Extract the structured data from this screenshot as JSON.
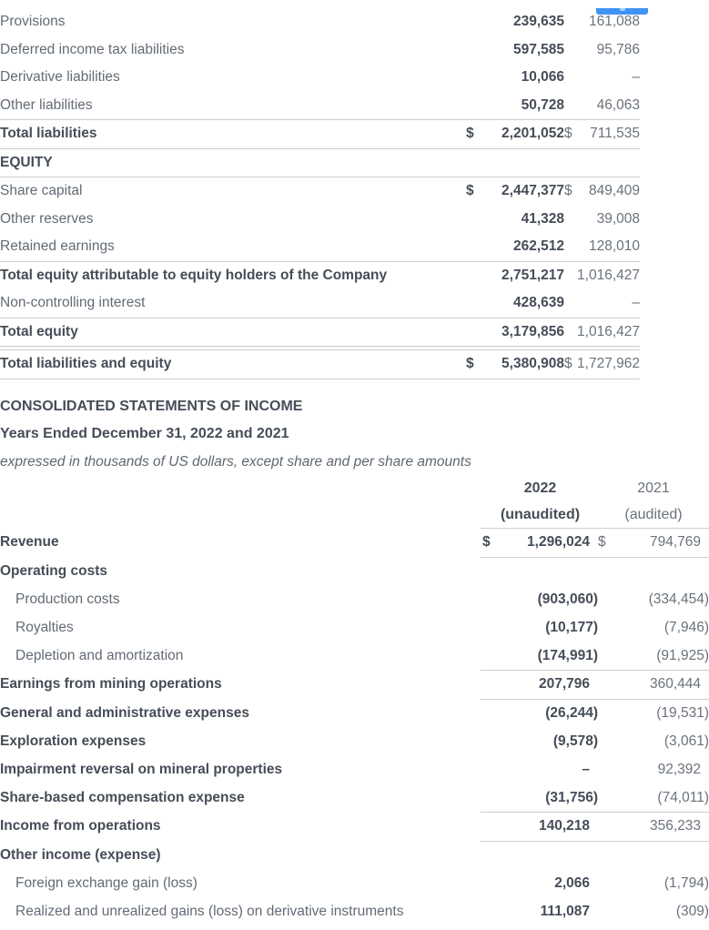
{
  "badge": {
    "color": "#3E93F4"
  },
  "colors": {
    "bold_text": "#454D58",
    "regular_text": "#636B75",
    "secondary_number": "#6A727B",
    "rule": "#CBCFD3",
    "accent_blue": "#3E93F4"
  },
  "balance_sheet": {
    "rows": [
      {
        "label": "Provisions",
        "v2022": "239,635",
        "v2021": "161,088"
      },
      {
        "label": "Deferred income tax liabilities",
        "v2022": "597,585",
        "v2021": "95,786"
      },
      {
        "label": "Derivative liabilities",
        "v2022": "10,066",
        "v2021": "–"
      },
      {
        "label": "Other liabilities",
        "v2022": "50,728",
        "v2021": "46,063",
        "rule_below": "single"
      },
      {
        "label": "Total liabilities",
        "bold": true,
        "d2022": "$",
        "v2022": "2,201,052",
        "d2021": "$",
        "v2021": "711,535",
        "rule_below": "single"
      },
      {
        "label": "EQUITY",
        "bold": true,
        "rule_below": "single"
      },
      {
        "label": "Share capital",
        "d2022": "$",
        "v2022": "2,447,377",
        "d2021": "$",
        "v2021": "849,409"
      },
      {
        "label": "Other reserves",
        "v2022": "41,328",
        "v2021": "39,008"
      },
      {
        "label": "Retained earnings",
        "v2022": "262,512",
        "v2021": "128,010",
        "rule_below": "single"
      },
      {
        "label": "Total equity attributable to equity holders of the Company",
        "bold": true,
        "v2022": "2,751,217",
        "v2021": "1,016,427"
      },
      {
        "label": "Non-controlling interest",
        "v2022": "428,639",
        "v2021": "–",
        "rule_below": "single"
      },
      {
        "label": "Total equity",
        "bold": true,
        "v2022": "3,179,856",
        "v2021": "1,016,427",
        "rule_below": "double"
      },
      {
        "label": "Total liabilities and equity",
        "bold": true,
        "d2022": "$",
        "v2022": "5,380,908",
        "d2021": "$",
        "v2021": "1,727,962",
        "rule_below": "single"
      }
    ]
  },
  "income_statement": {
    "title": "CONSOLIDATED STATEMENTS OF INCOME",
    "subtitle": "Years Ended December 31, 2022 and 2021",
    "note": "expressed in thousands of US dollars, except share and per share amounts",
    "col_headers": {
      "y2022": "2022",
      "y2022_sub": "(unaudited)",
      "y2021": "2021",
      "y2021_sub": "(audited)"
    },
    "rows": [
      {
        "label": "Revenue",
        "bold": true,
        "d2022": "$",
        "v2022": "1,296,024",
        "d2021": "$",
        "v2021": "794,769",
        "rule_below": "single"
      },
      {
        "label": "Operating costs",
        "bold": true
      },
      {
        "label": "Production costs",
        "indent": true,
        "v2022": "(903,060)",
        "v2021": "(334,454)"
      },
      {
        "label": "Royalties",
        "indent": true,
        "v2022": "(10,177)",
        "v2021": "(7,946)"
      },
      {
        "label": "Depletion and amortization",
        "indent": true,
        "v2022": "(174,991)",
        "v2021": "(91,925)",
        "rule_below": "single"
      },
      {
        "label": "Earnings from mining operations",
        "bold": true,
        "v2022": "207,796",
        "v2021": "360,444",
        "rule_below": "single"
      },
      {
        "label": "General and administrative expenses",
        "bold": true,
        "v2022": "(26,244)",
        "v2021": "(19,531)"
      },
      {
        "label": "Exploration expenses",
        "bold": true,
        "v2022": "(9,578)",
        "v2021": "(3,061)"
      },
      {
        "label": "Impairment reversal on mineral properties",
        "bold": true,
        "v2022": "–",
        "v2021": "92,392"
      },
      {
        "label": "Share-based compensation expense",
        "bold": true,
        "v2022": "(31,756)",
        "v2021": "(74,011)",
        "rule_below": "single"
      },
      {
        "label": "Income from operations",
        "bold": true,
        "v2022": "140,218",
        "v2021": "356,233",
        "rule_below": "single"
      },
      {
        "label": "Other income (expense)",
        "bold": true
      },
      {
        "label": "Foreign exchange gain (loss)",
        "indent": true,
        "v2022": "2,066",
        "v2021": "(1,794)"
      },
      {
        "label": "Realized and unrealized gains (loss) on derivative instruments",
        "indent": true,
        "v2022": "111,087",
        "v2021": "(309)"
      }
    ]
  }
}
